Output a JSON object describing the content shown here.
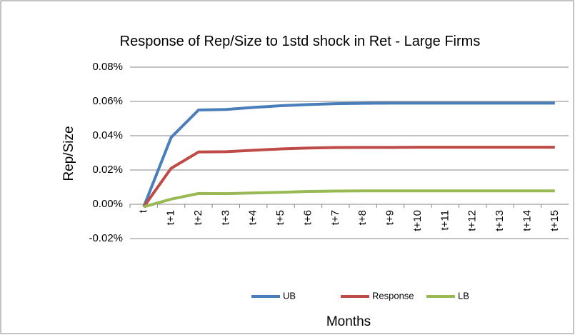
{
  "chart_data": {
    "type": "line",
    "title": "Response of Rep/Size to 1std shock in Ret - Large Firms",
    "y_label": "Rep/Size",
    "x_label": "Months",
    "categories": [
      "t",
      "t+1",
      "t+2",
      "t+3",
      "t+4",
      "t+5",
      "t+6",
      "t+7",
      "t+8",
      "t+9",
      "t+10",
      "t+11",
      "t+12",
      "t+13",
      "t+14",
      "t+15"
    ],
    "series": [
      {
        "name": "UB",
        "color": "#4a7ebb",
        "values": [
          -0.0015,
          0.039,
          0.055,
          0.0553,
          0.0565,
          0.0575,
          0.0582,
          0.0587,
          0.0589,
          0.059,
          0.059,
          0.059,
          0.059,
          0.059,
          0.059,
          0.059
        ]
      },
      {
        "name": "Response",
        "color": "#be4b48",
        "values": [
          -0.0015,
          0.021,
          0.0305,
          0.0307,
          0.0315,
          0.0323,
          0.0328,
          0.0331,
          0.0332,
          0.0332,
          0.0333,
          0.0333,
          0.0333,
          0.0333,
          0.0333,
          0.0333
        ]
      },
      {
        "name": "LB",
        "color": "#98b954",
        "values": [
          -0.0015,
          0.003,
          0.0063,
          0.0062,
          0.0066,
          0.007,
          0.0075,
          0.0077,
          0.0078,
          0.0078,
          0.0078,
          0.0078,
          0.0078,
          0.0078,
          0.0078,
          0.0078
        ]
      }
    ],
    "ylim": [
      -0.02,
      0.08
    ],
    "yticks": [
      {
        "value": -0.02,
        "label": "-0.02%"
      },
      {
        "value": 0,
        "label": "0.00%"
      },
      {
        "value": 0.02,
        "label": "0.02%"
      },
      {
        "value": 0.04,
        "label": "0.04%"
      },
      {
        "value": 0.06,
        "label": "0.06%"
      },
      {
        "value": 0.08,
        "label": "0.08%"
      }
    ],
    "grid": true,
    "legend": "bottom"
  }
}
